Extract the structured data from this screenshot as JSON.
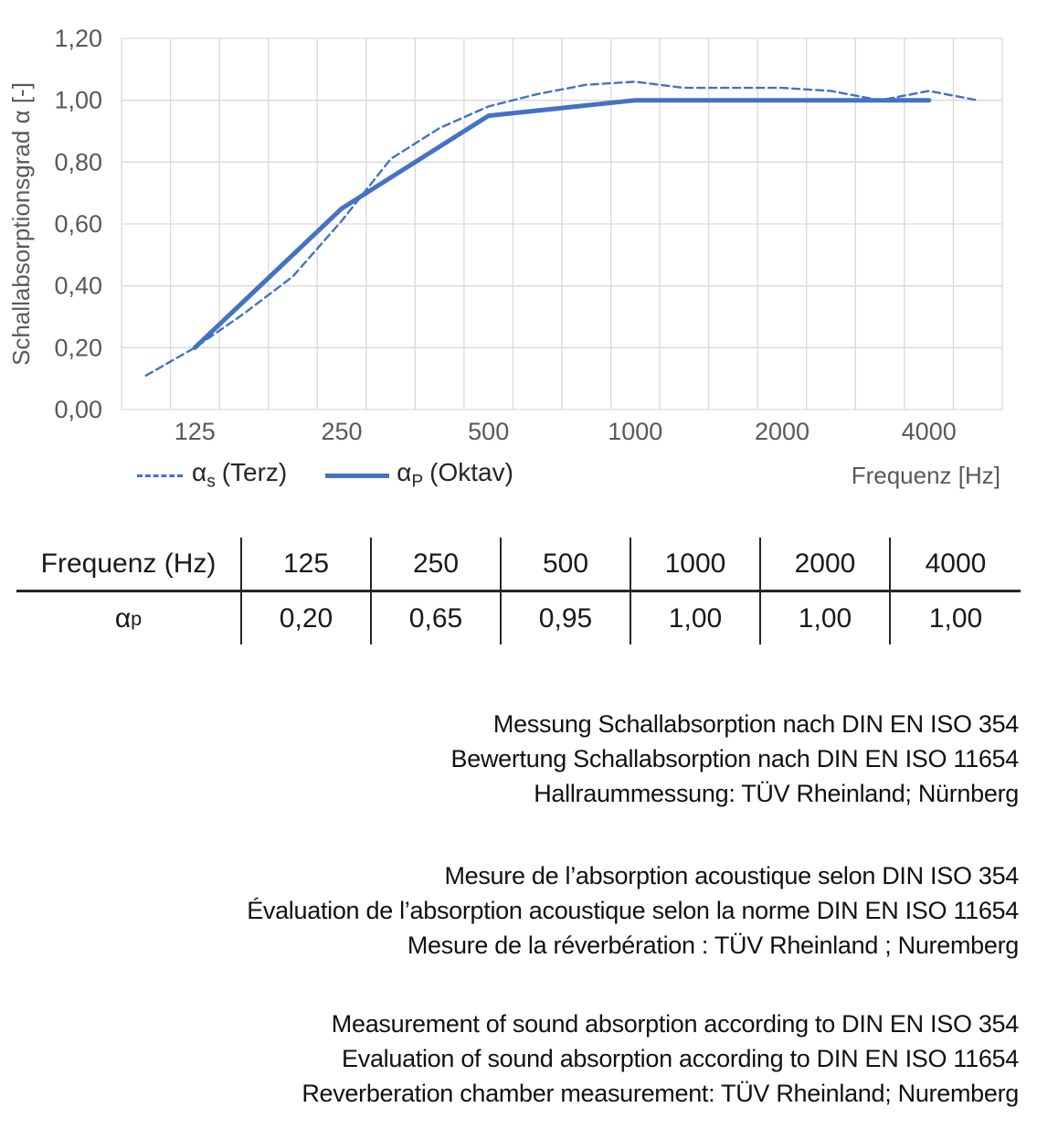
{
  "chart": {
    "y_axis_title": "Schallabsorptionsgrad α [-]",
    "x_axis_title": "Frequenz [Hz]"
  },
  "legend": {
    "items": [
      {
        "symbol": "dashed-line",
        "alpha": "α",
        "sub": "s",
        "rest": "(Terz)"
      },
      {
        "symbol": "solid-line",
        "alpha": "α",
        "sub": "P",
        "rest": "(Oktav)"
      }
    ]
  },
  "chart_data": {
    "type": "line",
    "xlabel": "Frequenz [Hz]",
    "ylabel": "Schallabsorptionsgrad α [-]",
    "x_scale": "logarithmic (third-octave band categories)",
    "x_bands": [
      100,
      125,
      160,
      200,
      250,
      315,
      400,
      500,
      630,
      800,
      1000,
      1250,
      1600,
      2000,
      2500,
      3150,
      4000,
      5000
    ],
    "x_tick_labels": [
      125,
      250,
      500,
      1000,
      2000,
      4000
    ],
    "ylim": [
      0,
      1.2
    ],
    "grid": true,
    "legend_position": "bottom-left",
    "y_ticks": [
      {
        "value": 1.2,
        "label": "1,20"
      },
      {
        "value": 1.0,
        "label": "1,00"
      },
      {
        "value": 0.8,
        "label": "0,80"
      },
      {
        "value": 0.6,
        "label": "0,60"
      },
      {
        "value": 0.4,
        "label": "0,40"
      },
      {
        "value": 0.2,
        "label": "0,20"
      },
      {
        "value": 0.0,
        "label": "0,00"
      }
    ],
    "series": [
      {
        "name": "αs (Terz)",
        "style": "dashed",
        "color": "#4472C4",
        "points": [
          [
            100,
            0.11
          ],
          [
            125,
            0.2
          ],
          [
            160,
            0.31
          ],
          [
            200,
            0.43
          ],
          [
            250,
            0.61
          ],
          [
            315,
            0.81
          ],
          [
            400,
            0.91
          ],
          [
            500,
            0.98
          ],
          [
            630,
            1.02
          ],
          [
            800,
            1.05
          ],
          [
            1000,
            1.06
          ],
          [
            1250,
            1.04
          ],
          [
            1600,
            1.04
          ],
          [
            2000,
            1.04
          ],
          [
            2500,
            1.03
          ],
          [
            3150,
            1.0
          ],
          [
            4000,
            1.03
          ],
          [
            5000,
            1.0
          ]
        ]
      },
      {
        "name": "αP (Oktav)",
        "style": "solid",
        "color": "#4472C4",
        "points": [
          [
            125,
            0.2
          ],
          [
            250,
            0.65
          ],
          [
            500,
            0.95
          ],
          [
            1000,
            1.0
          ],
          [
            2000,
            1.0
          ],
          [
            4000,
            1.0
          ]
        ]
      }
    ]
  },
  "table": {
    "header": [
      "Frequenz (Hz)",
      "125",
      "250",
      "500",
      "1000",
      "2000",
      "4000"
    ],
    "row_label": "α",
    "row_label_sub": "p",
    "values": [
      "0,20",
      "0,65",
      "0,95",
      "1,00",
      "1,00",
      "1,00"
    ]
  },
  "notes": {
    "de": [
      "Messung Schallabsorption nach DIN EN ISO 354",
      "Bewertung Schallabsorption nach DIN EN ISO 11654",
      "Hallraummessung: TÜV Rheinland; Nürnberg"
    ],
    "fr": [
      "Mesure de l’absorption acoustique selon DIN ISO 354",
      "Évaluation de l’absorption acoustique selon la norme DIN EN ISO 11654",
      "Mesure de la réverbération : TÜV Rheinland ; Nuremberg"
    ],
    "en": [
      "Measurement of sound absorption according to DIN EN ISO 354",
      "Evaluation of sound absorption according to DIN EN ISO 11654",
      "Reverberation chamber measurement: TÜV Rheinland; Nuremberg"
    ]
  },
  "colors": {
    "line_blue": "#4472C4",
    "grid": "#D9D9D9",
    "axis_text": "#595959",
    "table_line": "#262626",
    "text": "#111111"
  }
}
